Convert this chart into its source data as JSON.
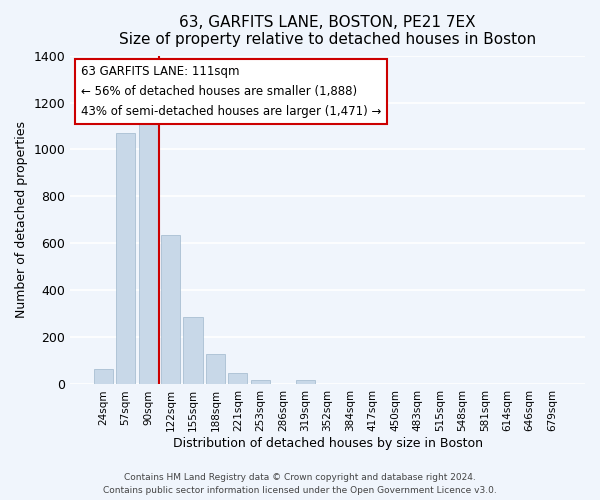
{
  "title": "63, GARFITS LANE, BOSTON, PE21 7EX",
  "subtitle": "Size of property relative to detached houses in Boston",
  "xlabel": "Distribution of detached houses by size in Boston",
  "ylabel": "Number of detached properties",
  "bar_color": "#c8d8e8",
  "bar_edge_color": "#a0b8cc",
  "categories": [
    "24sqm",
    "57sqm",
    "90sqm",
    "122sqm",
    "155sqm",
    "188sqm",
    "221sqm",
    "253sqm",
    "286sqm",
    "319sqm",
    "352sqm",
    "384sqm",
    "417sqm",
    "450sqm",
    "483sqm",
    "515sqm",
    "548sqm",
    "581sqm",
    "614sqm",
    "646sqm",
    "679sqm"
  ],
  "values": [
    65,
    1070,
    1155,
    635,
    285,
    130,
    48,
    20,
    0,
    20,
    0,
    0,
    0,
    0,
    0,
    0,
    0,
    0,
    0,
    0,
    0
  ],
  "ylim": [
    0,
    1400
  ],
  "yticks": [
    0,
    200,
    400,
    600,
    800,
    1000,
    1200,
    1400
  ],
  "vline_color": "#cc0000",
  "vline_x_index": 3,
  "annotation_line1": "63 GARFITS LANE: 111sqm",
  "annotation_line2": "← 56% of detached houses are smaller (1,888)",
  "annotation_line3": "43% of semi-detached houses are larger (1,471) →",
  "footer_line1": "Contains HM Land Registry data © Crown copyright and database right 2024.",
  "footer_line2": "Contains public sector information licensed under the Open Government Licence v3.0.",
  "background_color": "#f0f5fc",
  "grid_color": "#ffffff"
}
